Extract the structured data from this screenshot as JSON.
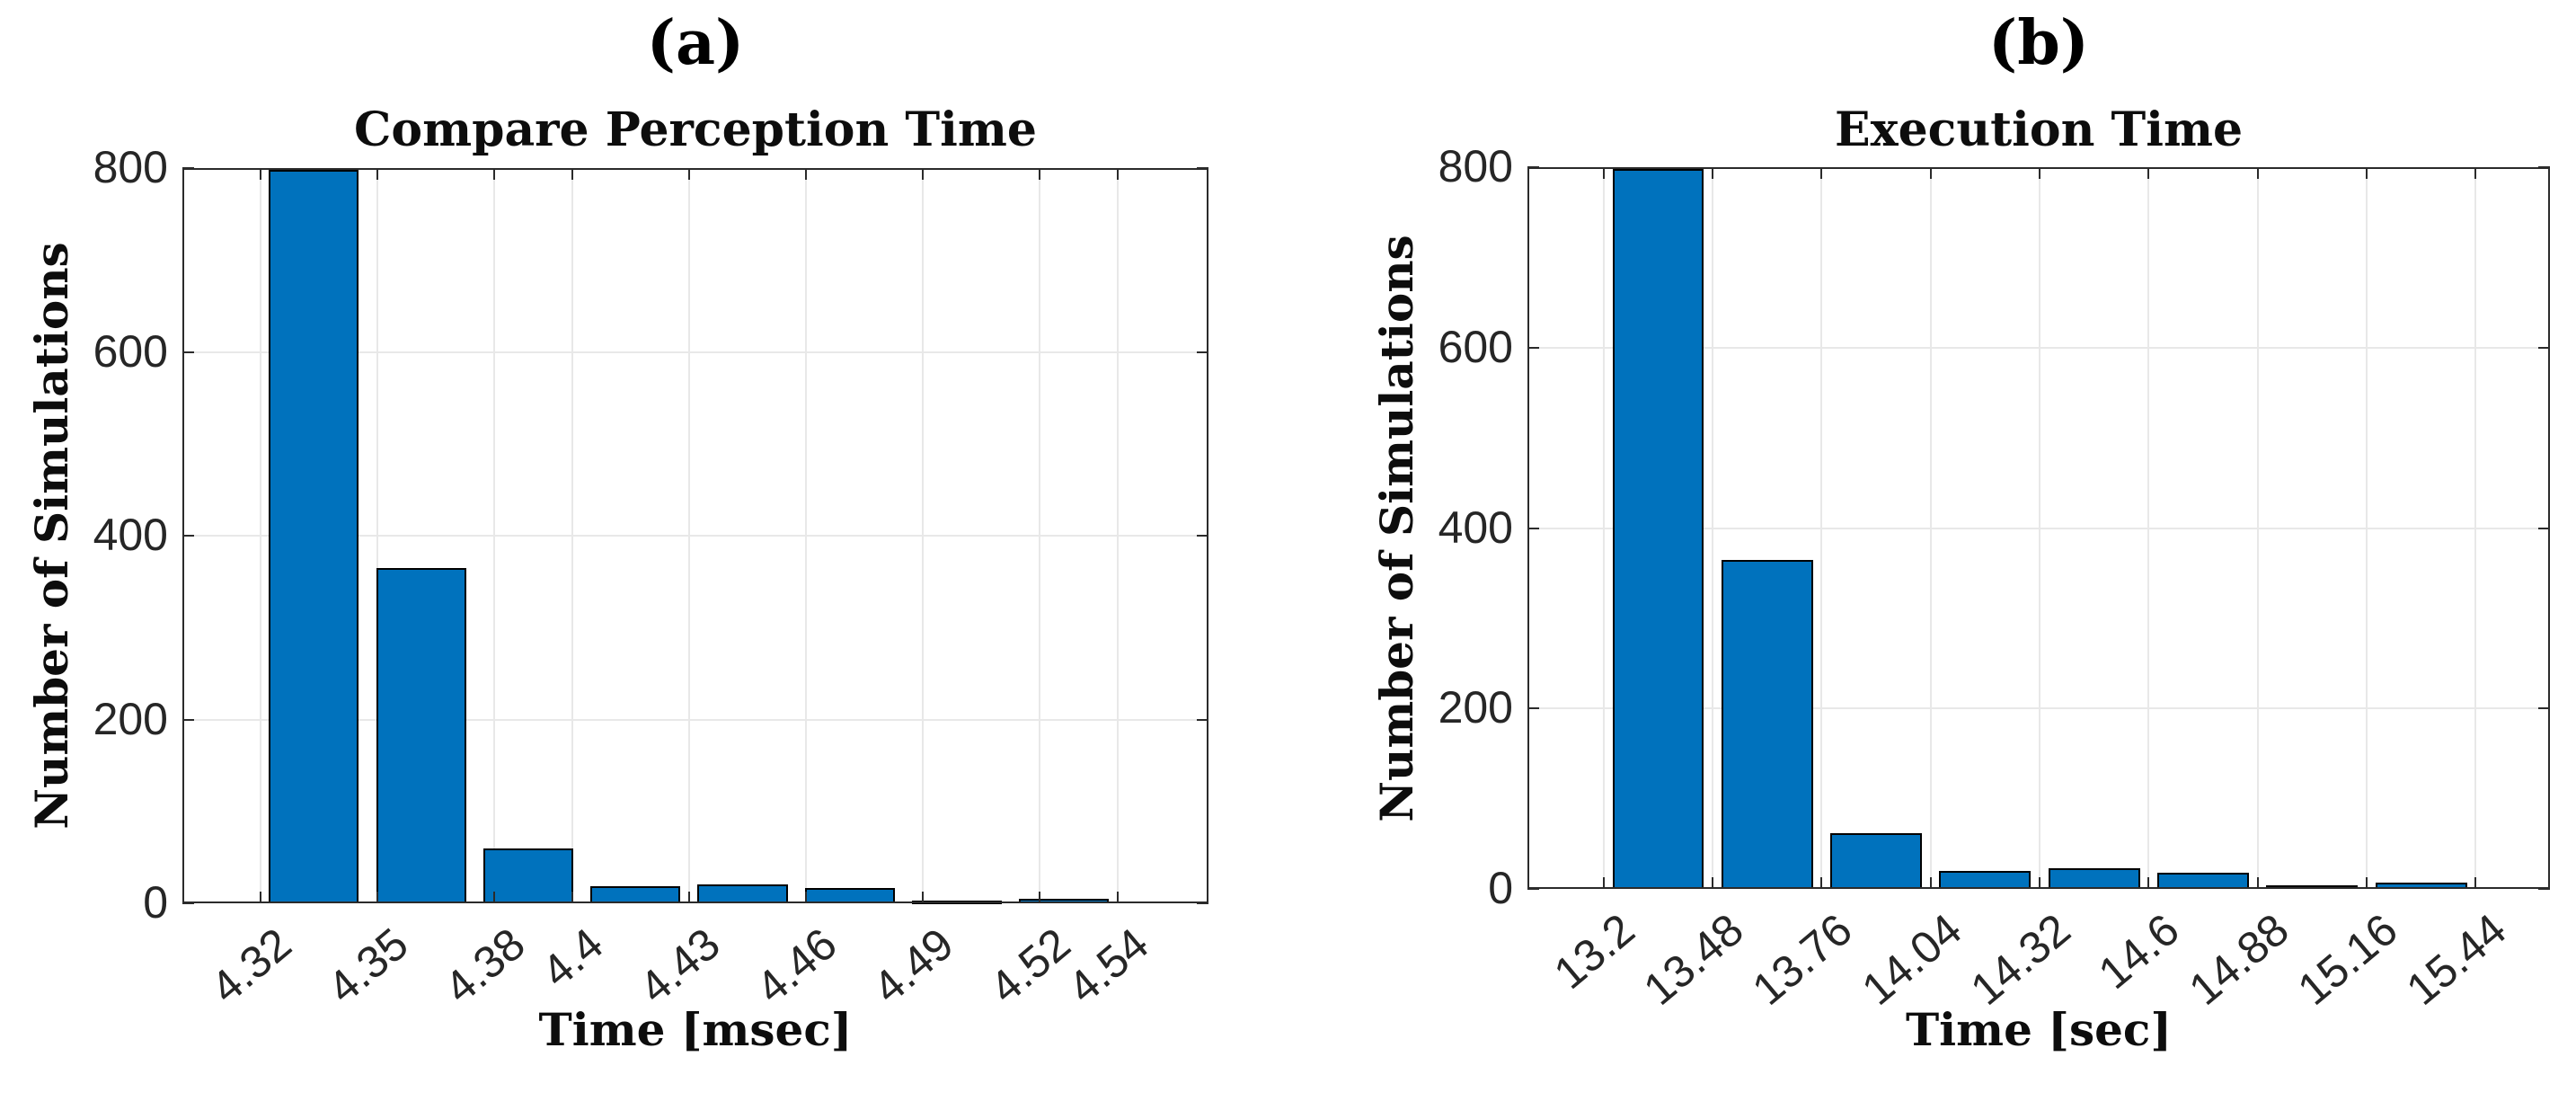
{
  "colors": {
    "bar_fill": "#0072BD",
    "bar_edge": "#000000",
    "grid": "#e8e8e8",
    "axis": "#2b2b2b",
    "tick_text": "#262626",
    "label_text": "#000000",
    "background": "#ffffff"
  },
  "chart_data": [
    {
      "type": "bar",
      "panel_label": "(a)",
      "title": "Compare Perception Time",
      "xlabel": "Time [msec]",
      "ylabel": "Number of Simulations",
      "x_ticks": [
        4.32,
        4.35,
        4.38,
        4.4,
        4.43,
        4.46,
        4.49,
        4.52,
        4.54
      ],
      "x_tick_labels": [
        "4.32",
        "4.35",
        "4.38",
        "4.4",
        "4.43",
        "4.46",
        "4.49",
        "4.52",
        "4.54"
      ],
      "y_ticks": [
        0,
        200,
        400,
        600,
        800
      ],
      "y_tick_labels": [
        "0",
        "200",
        "400",
        "600",
        "800"
      ],
      "xlim": [
        4.3,
        4.5633
      ],
      "ylim": [
        0,
        800
      ],
      "bins": {
        "start": 4.32,
        "width": 0.0275,
        "count": 8
      },
      "values": [
        800,
        365,
        60,
        19,
        21,
        17,
        3,
        5
      ],
      "grid": true,
      "legend": null
    },
    {
      "type": "bar",
      "panel_label": "(b)",
      "title": "Execution Time",
      "xlabel": "Time [sec]",
      "ylabel": "Number of Simulations",
      "x_ticks": [
        13.2,
        13.48,
        13.76,
        14.04,
        14.32,
        14.6,
        14.88,
        15.16,
        15.44
      ],
      "x_tick_labels": [
        "13.2",
        "13.48",
        "13.76",
        "14.04",
        "14.32",
        "14.6",
        "14.88",
        "15.16",
        "15.44"
      ],
      "y_ticks": [
        0,
        200,
        400,
        600,
        800
      ],
      "y_tick_labels": [
        "0",
        "200",
        "400",
        "600",
        "800"
      ],
      "xlim": [
        13.004,
        15.631
      ],
      "ylim": [
        0,
        800
      ],
      "bins": {
        "start": 13.2,
        "width": 0.28,
        "count": 8
      },
      "values": [
        800,
        365,
        62,
        20,
        23,
        18,
        4,
        7
      ],
      "grid": true,
      "legend": null
    }
  ]
}
